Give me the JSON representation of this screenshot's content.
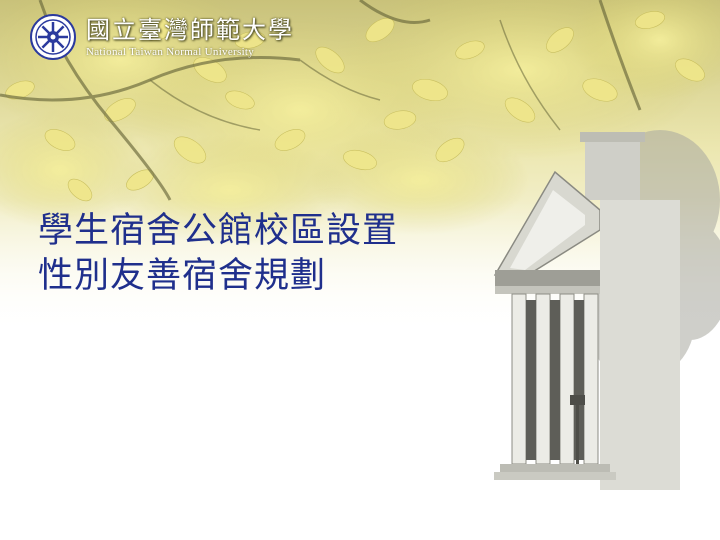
{
  "university": {
    "name_zh": "國立臺灣師範大學",
    "name_en": "National Taiwan Normal University"
  },
  "title": {
    "line1": "學生宿舍公館校區設置",
    "line2": "性別友善宿舍規劃"
  },
  "colors": {
    "title": "#1f2f8c",
    "seal": "#2b3a9e",
    "foliage": "#e8e28a"
  }
}
